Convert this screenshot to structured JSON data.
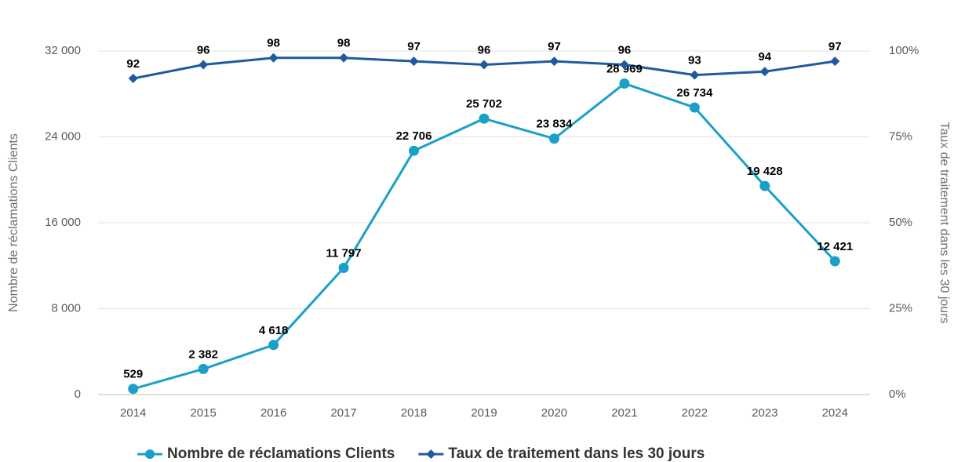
{
  "chart_data": {
    "type": "line",
    "categories": [
      "2014",
      "2015",
      "2016",
      "2017",
      "2018",
      "2019",
      "2020",
      "2021",
      "2022",
      "2023",
      "2024"
    ],
    "series": [
      {
        "name": "Nombre de réclamations Clients",
        "color": "#1aa0c8",
        "values": [
          529,
          2382,
          4618,
          11797,
          22706,
          25702,
          23834,
          28969,
          26734,
          19428,
          12421
        ],
        "value_labels": [
          "529",
          "2 382",
          "4 618",
          "11 797",
          "22 706",
          "25 702",
          "23 834",
          "28 969",
          "26 734",
          "19 428",
          "12 421"
        ]
      },
      {
        "name": "Taux de traitement dans les 30 jours",
        "color": "#1f5aa0",
        "axis": "y2",
        "values": [
          92,
          96,
          98,
          98,
          97,
          96,
          97,
          96,
          93,
          94,
          97
        ]
      }
    ],
    "y_label": "Nombre de réclamations Clients",
    "y2_label": "Taux de traitement dans les 30 jours",
    "ylim": [
      0,
      32000
    ],
    "yticks": [
      0,
      {
        "value": 8000,
        "label": "8 000"
      },
      {
        "value": 16000,
        "label": "16 000"
      },
      {
        "value": 24000,
        "label": "24 000"
      },
      {
        "value": 32000,
        "label": "32 000"
      }
    ],
    "y2lim": [
      0,
      100
    ],
    "y2ticks": [
      {
        "value": 0,
        "label": "0%"
      },
      {
        "value": 25,
        "label": "25%"
      },
      {
        "value": 50,
        "label": "50%"
      },
      {
        "value": 75,
        "label": "75%"
      },
      {
        "value": 100,
        "label": "100%"
      }
    ],
    "grid": true,
    "legend": "bottom"
  }
}
